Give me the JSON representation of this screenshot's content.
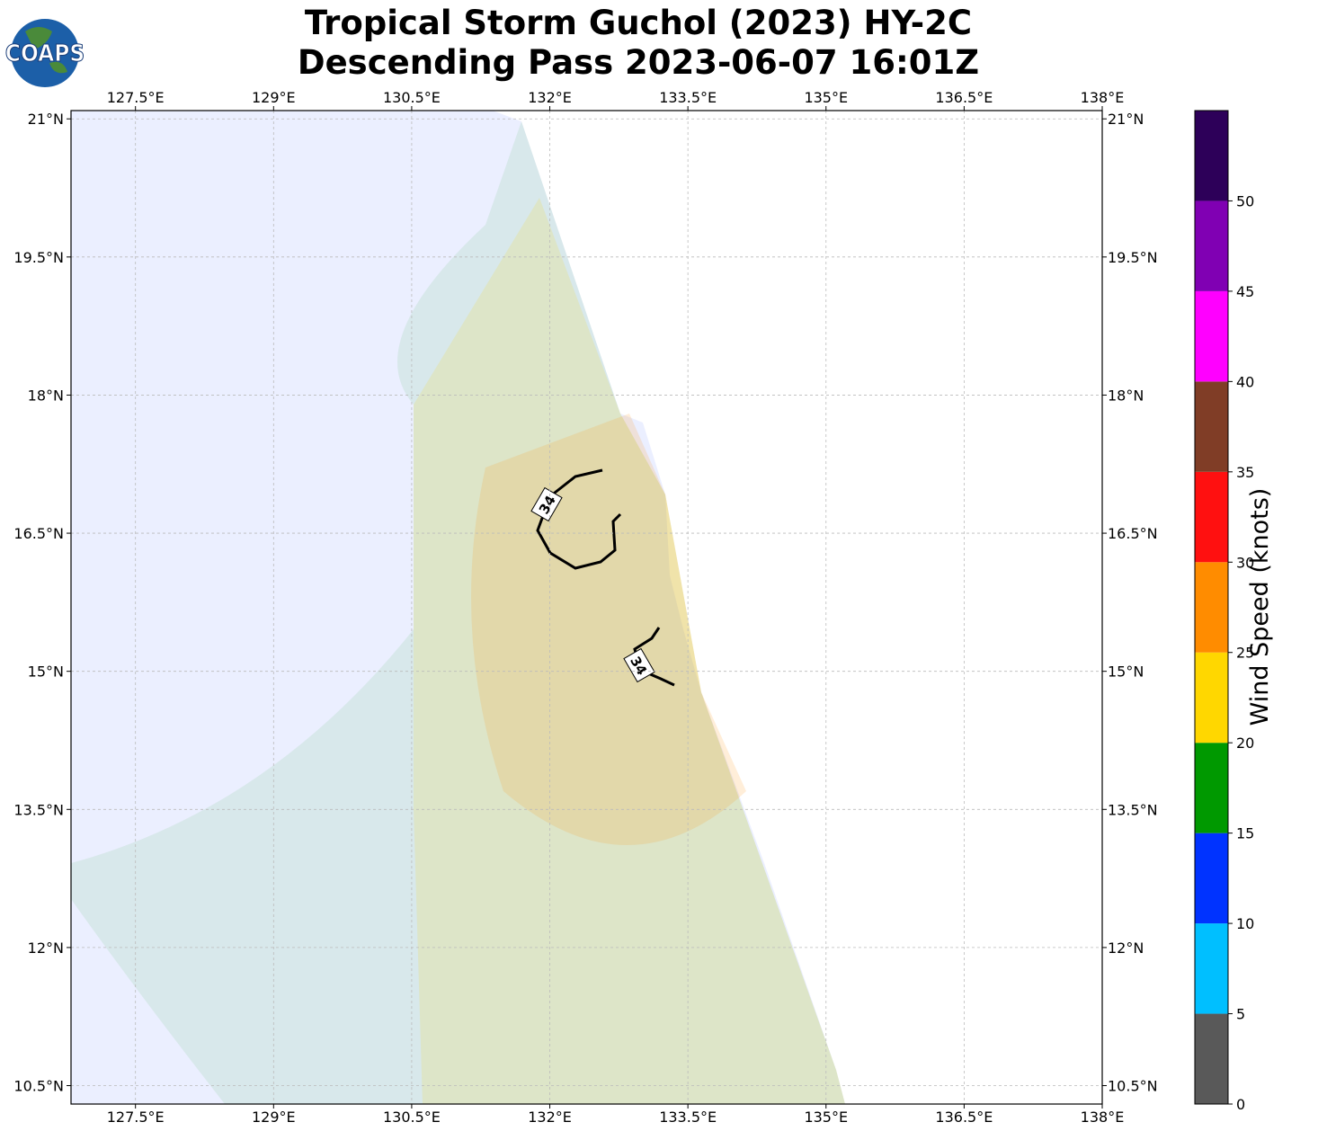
{
  "logo": "COAPS",
  "title": [
    "Tropical Storm Guchol (2023) HY-2C",
    "Descending Pass 2023-06-07 16:01Z"
  ],
  "map": {
    "xlim": [
      126.8,
      138
    ],
    "ylim": [
      10.3,
      21.09
    ],
    "xticks": [
      {
        "value": 127.5,
        "label": "127.5°E"
      },
      {
        "value": 129,
        "label": "129°E"
      },
      {
        "value": 130.5,
        "label": "130.5°E"
      },
      {
        "value": 132,
        "label": "132°E"
      },
      {
        "value": 133.5,
        "label": "133.5°E"
      },
      {
        "value": 135,
        "label": "135°E"
      },
      {
        "value": 136.5,
        "label": "136.5°E"
      },
      {
        "value": 138,
        "label": "138°E"
      }
    ],
    "yticks": [
      {
        "value": 10.5,
        "label": "10.5°N"
      },
      {
        "value": 12,
        "label": "12°N"
      },
      {
        "value": 13.5,
        "label": "13.5°N"
      },
      {
        "value": 15,
        "label": "15°N"
      },
      {
        "value": 16.5,
        "label": "16.5°N"
      },
      {
        "value": 18,
        "label": "18°N"
      },
      {
        "value": 19.5,
        "label": "19.5°N"
      },
      {
        "value": 21,
        "label": "21°N"
      }
    ],
    "grid": true,
    "contour_labels": [
      "34",
      "34"
    ]
  },
  "colorbar": {
    "label": "Wind Speed (knots)",
    "bounds": [
      0,
      5,
      10,
      15,
      20,
      25,
      30,
      35,
      40,
      45,
      50,
      55
    ],
    "colors": [
      "#595959",
      "#00bfff",
      "#0033ff",
      "#009900",
      "#ffd700",
      "#ff8c00",
      "#ff1010",
      "#803d26",
      "#ff00ff",
      "#8000b3",
      "#2d0059"
    ],
    "ticks": [
      0,
      5,
      10,
      15,
      20,
      25,
      30,
      35,
      40,
      45,
      50
    ]
  }
}
